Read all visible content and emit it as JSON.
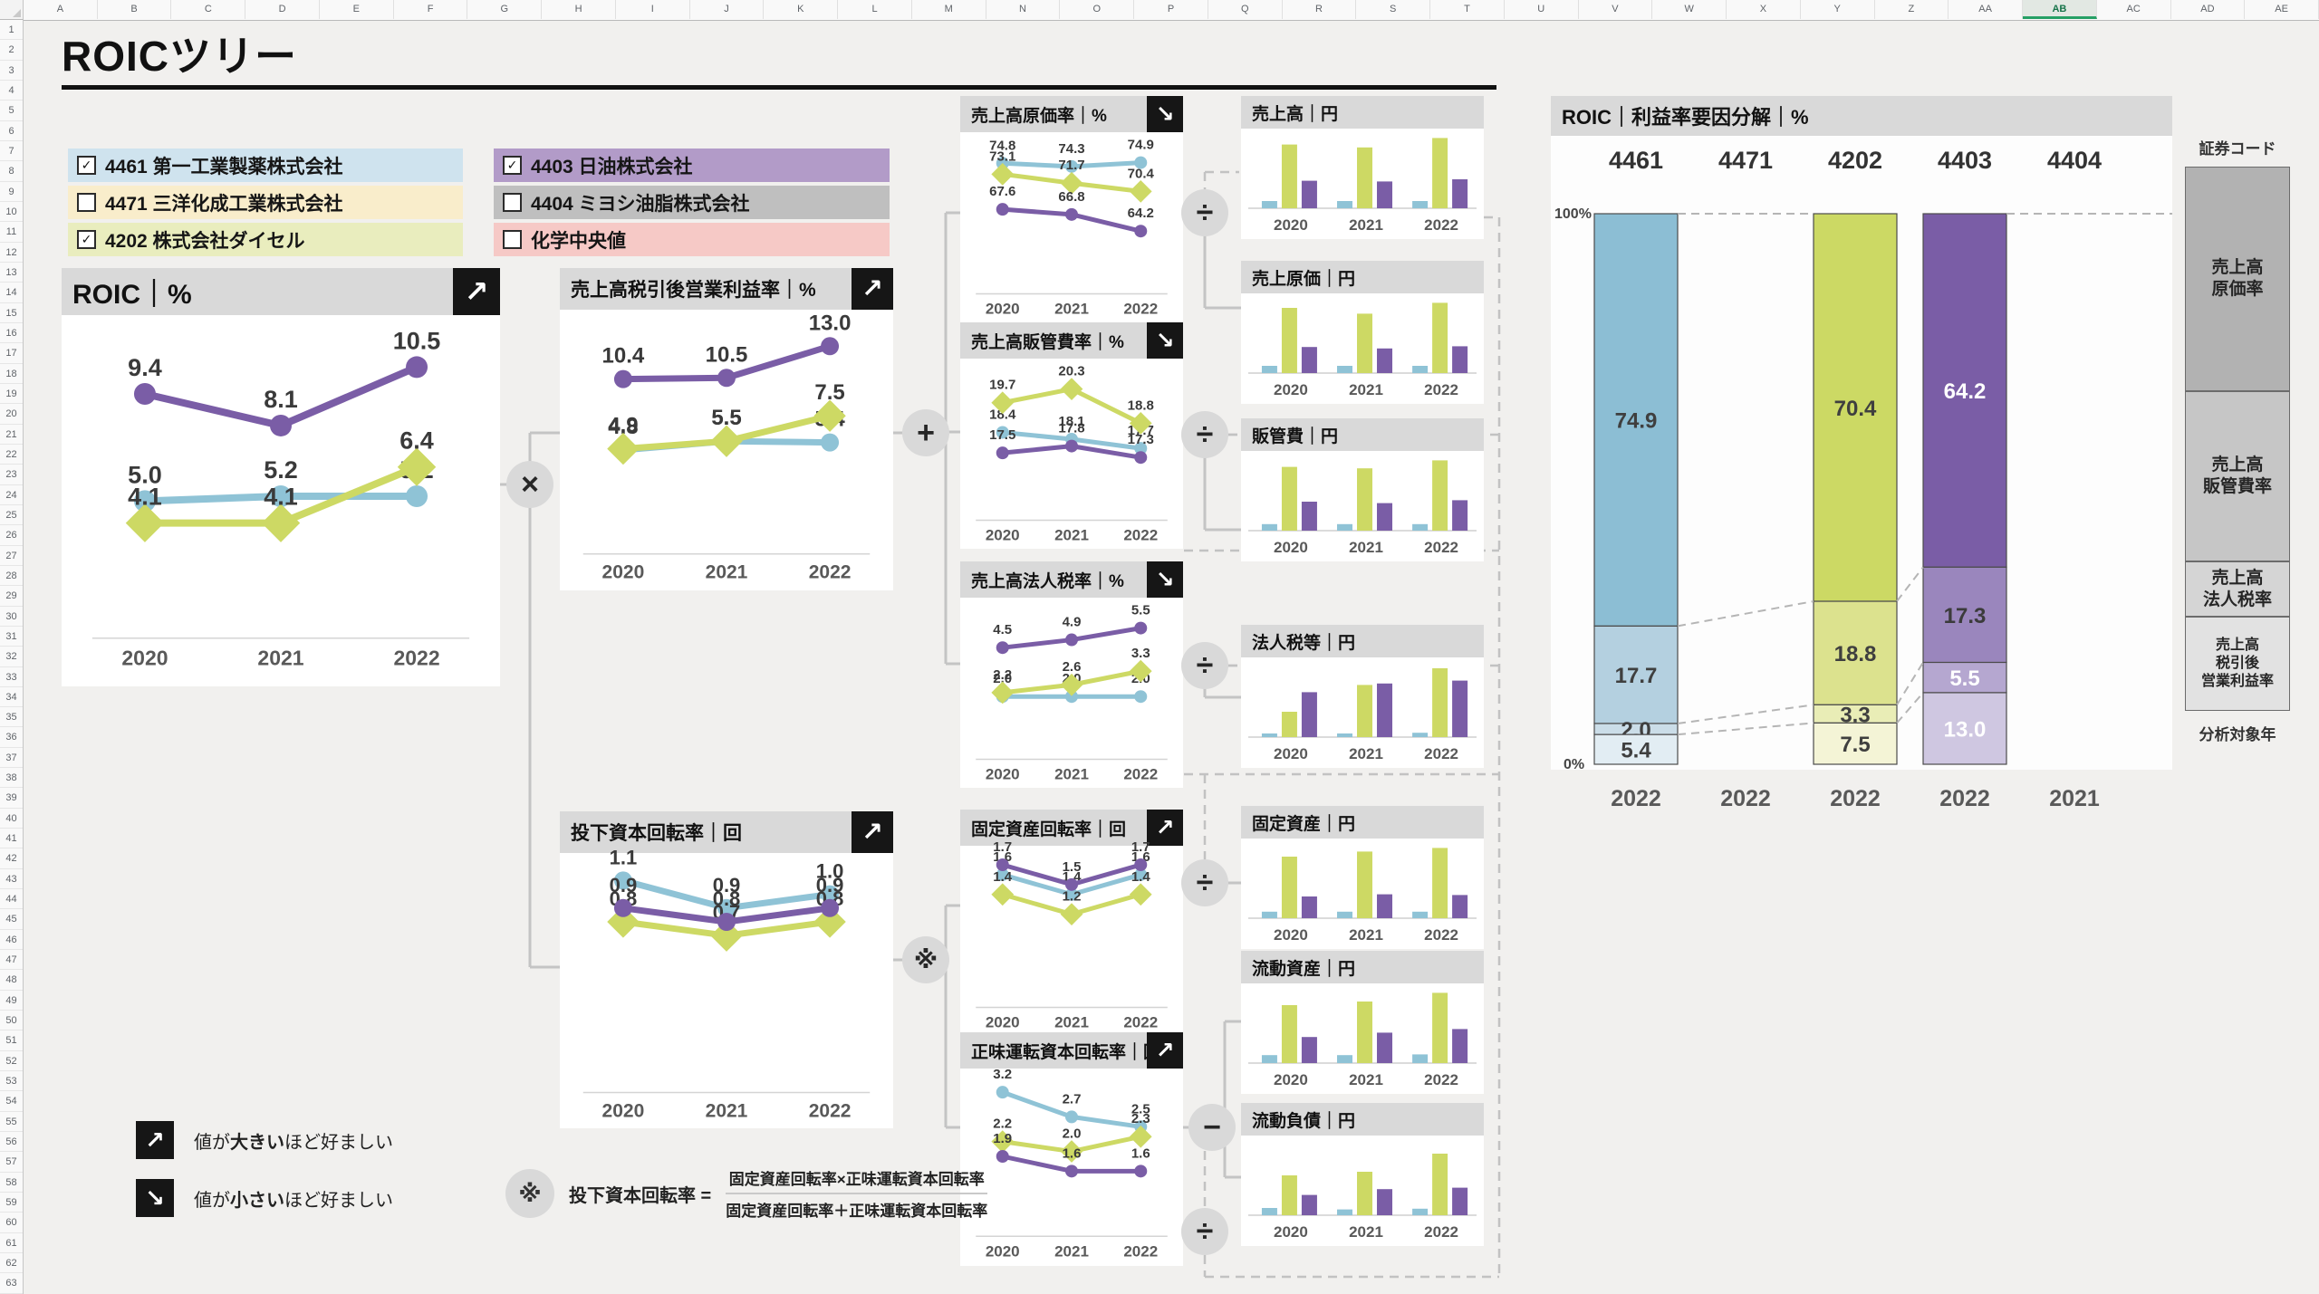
{
  "window": {
    "app": "excel-sheet"
  },
  "excel": {
    "columns": [
      "A",
      "B",
      "C",
      "D",
      "E",
      "F",
      "G",
      "H",
      "I",
      "J",
      "K",
      "L",
      "M",
      "N",
      "O",
      "P",
      "Q",
      "R",
      "S",
      "T",
      "U",
      "V",
      "W",
      "X",
      "Y",
      "Z",
      "AA",
      "AB",
      "AC",
      "AD",
      "AE"
    ],
    "selected_column": "AB",
    "row_count": 63
  },
  "title": "ROICツリー",
  "years": [
    "2020",
    "2021",
    "2022"
  ],
  "series_colors": {
    "4461": "#8fc3d6",
    "4202": "#cdd964",
    "4403": "#7a5da6"
  },
  "legend": {
    "items": [
      {
        "code": "4461",
        "name": "第一工業製薬株式会社",
        "checked": true,
        "color": "#cfe3ee"
      },
      {
        "code": "4471",
        "name": "三洋化成工業株式会社",
        "checked": false,
        "color": "#f9edcb"
      },
      {
        "code": "4202",
        "name": "株式会社ダイセル",
        "checked": true,
        "color": "#e9edbe"
      },
      {
        "code": "4403",
        "name": "日油株式会社",
        "checked": true,
        "color": "#b29bc8"
      },
      {
        "code": "4404",
        "name": "ミヨシ油脂株式会社",
        "checked": false,
        "color": "#bfbfbf"
      },
      {
        "code": "",
        "name": "化学中央値",
        "checked": false,
        "color": "#f6c9c6"
      }
    ]
  },
  "operators": {
    "multiply": "×",
    "plus": "+",
    "divide": "÷",
    "minus": "−",
    "reference": "※"
  },
  "icons": {
    "up_right_arrow": "↗",
    "down_right_arrow": "↘",
    "check": "✓"
  },
  "notes": {
    "up": {
      "pre": "値が",
      "bold": "大きい",
      "post": "ほど好ましい"
    },
    "down": {
      "pre": "値が",
      "bold": "小さい",
      "post": "ほど好ましい"
    }
  },
  "formula_note": {
    "mark": "※",
    "lhs": "投下資本回転率 =",
    "numerator": "固定資産回転率×正味運転資本回転率",
    "denominator": "固定資産回転率＋正味運転資本回転率"
  },
  "chart_data": {
    "line_charts": [
      {
        "id": "roic",
        "type": "line",
        "title": "ROIC",
        "unit": "%",
        "better": "up",
        "x": [
          "2020",
          "2021",
          "2022"
        ],
        "series": [
          {
            "name": "4461",
            "values": [
              5.0,
              5.2,
              5.2
            ]
          },
          {
            "name": "4202",
            "values": [
              4.1,
              4.1,
              6.4
            ]
          },
          {
            "name": "4403",
            "values": [
              9.4,
              8.1,
              10.5
            ]
          }
        ]
      },
      {
        "id": "after-tax-op-margin",
        "type": "line",
        "title": "売上高税引後営業利益率",
        "unit": "%",
        "better": "up",
        "x": [
          "2020",
          "2021",
          "2022"
        ],
        "series": [
          {
            "name": "4461",
            "values": [
              4.8,
              5.5,
              5.4
            ]
          },
          {
            "name": "4202",
            "values": [
              4.9,
              5.5,
              7.5
            ]
          },
          {
            "name": "4403",
            "values": [
              10.4,
              10.5,
              13.0
            ]
          }
        ]
      },
      {
        "id": "invested-capital-turnover",
        "type": "line",
        "title": "投下資本回転率",
        "unit": "回",
        "better": "up",
        "x": [
          "2020",
          "2021",
          "2022"
        ],
        "series": [
          {
            "name": "4461",
            "values": [
              1.1,
              0.9,
              1.0
            ]
          },
          {
            "name": "4202",
            "values": [
              0.8,
              0.7,
              0.8
            ]
          },
          {
            "name": "4403",
            "values": [
              0.9,
              0.8,
              0.9
            ]
          }
        ]
      },
      {
        "id": "cogs-ratio",
        "type": "line",
        "title": "売上高原価率",
        "unit": "%",
        "better": "down",
        "x": [
          "2020",
          "2021",
          "2022"
        ],
        "series": [
          {
            "name": "4461",
            "values": [
              74.8,
              74.3,
              74.9
            ]
          },
          {
            "name": "4202",
            "values": [
              73.1,
              71.7,
              70.4
            ]
          },
          {
            "name": "4403",
            "values": [
              67.6,
              66.8,
              64.2
            ]
          }
        ]
      },
      {
        "id": "sga-ratio",
        "type": "line",
        "title": "売上高販管費率",
        "unit": "%",
        "better": "down",
        "x": [
          "2020",
          "2021",
          "2022"
        ],
        "series": [
          {
            "name": "4461",
            "values": [
              18.4,
              18.1,
              17.7
            ]
          },
          {
            "name": "4202",
            "values": [
              19.7,
              20.3,
              18.8
            ]
          },
          {
            "name": "4403",
            "values": [
              17.5,
              17.8,
              17.3
            ]
          }
        ]
      },
      {
        "id": "tax-ratio",
        "type": "line",
        "title": "売上高法人税率",
        "unit": "%",
        "better": "down",
        "x": [
          "2020",
          "2021",
          "2022"
        ],
        "series": [
          {
            "name": "4461",
            "values": [
              2.0,
              2.0,
              2.0
            ]
          },
          {
            "name": "4202",
            "values": [
              2.2,
              2.6,
              3.3
            ]
          },
          {
            "name": "4403",
            "values": [
              4.5,
              4.9,
              5.5
            ]
          }
        ]
      },
      {
        "id": "fixed-asset-turnover",
        "type": "line",
        "title": "固定資産回転率",
        "unit": "回",
        "better": "up",
        "x": [
          "2020",
          "2021",
          "2022"
        ],
        "series": [
          {
            "name": "4461",
            "values": [
              1.6,
              1.4,
              1.6
            ]
          },
          {
            "name": "4202",
            "values": [
              1.4,
              1.2,
              1.4
            ]
          },
          {
            "name": "4403",
            "values": [
              1.7,
              1.5,
              1.7
            ]
          }
        ]
      },
      {
        "id": "net-working-capital-turnover",
        "type": "line",
        "title": "正味運転資本回転率",
        "unit": "回",
        "better": "up",
        "x": [
          "2020",
          "2021",
          "2022"
        ],
        "series": [
          {
            "name": "4461",
            "values": [
              3.2,
              2.7,
              2.5
            ]
          },
          {
            "name": "4202",
            "values": [
              2.2,
              2.0,
              2.3
            ]
          },
          {
            "name": "4403",
            "values": [
              1.9,
              1.6,
              1.6
            ]
          }
        ]
      }
    ],
    "bar_charts": [
      {
        "id": "sales",
        "type": "bar",
        "title": "売上高",
        "unit": "円",
        "x": [
          "2020",
          "2021",
          "2022"
        ],
        "note": "relative heights, no value labels shown",
        "series": [
          {
            "name": "4461",
            "values": [
              0.1,
              0.1,
              0.1
            ]
          },
          {
            "name": "4202",
            "values": [
              0.88,
              0.84,
              0.97
            ]
          },
          {
            "name": "4403",
            "values": [
              0.38,
              0.37,
              0.4
            ]
          }
        ]
      },
      {
        "id": "cogs",
        "type": "bar",
        "title": "売上原価",
        "unit": "円",
        "x": [
          "2020",
          "2021",
          "2022"
        ],
        "series": [
          {
            "name": "4461",
            "values": [
              0.1,
              0.1,
              0.1
            ]
          },
          {
            "name": "4202",
            "values": [
              0.9,
              0.82,
              0.97
            ]
          },
          {
            "name": "4403",
            "values": [
              0.36,
              0.34,
              0.37
            ]
          }
        ]
      },
      {
        "id": "sga",
        "type": "bar",
        "title": "販管費",
        "unit": "円",
        "x": [
          "2020",
          "2021",
          "2022"
        ],
        "series": [
          {
            "name": "4461",
            "values": [
              0.09,
              0.09,
              0.09
            ]
          },
          {
            "name": "4202",
            "values": [
              0.88,
              0.86,
              0.97
            ]
          },
          {
            "name": "4403",
            "values": [
              0.4,
              0.38,
              0.42
            ]
          }
        ]
      },
      {
        "id": "income-tax",
        "type": "bar",
        "title": "法人税等",
        "unit": "円",
        "x": [
          "2020",
          "2021",
          "2022"
        ],
        "series": [
          {
            "name": "4461",
            "values": [
              0.05,
              0.05,
              0.06
            ]
          },
          {
            "name": "4202",
            "values": [
              0.35,
              0.72,
              0.95
            ]
          },
          {
            "name": "4403",
            "values": [
              0.62,
              0.74,
              0.78
            ]
          }
        ]
      },
      {
        "id": "fixed-assets",
        "type": "bar",
        "title": "固定資産",
        "unit": "円",
        "x": [
          "2020",
          "2021",
          "2022"
        ],
        "series": [
          {
            "name": "4461",
            "values": [
              0.09,
              0.09,
              0.09
            ]
          },
          {
            "name": "4202",
            "values": [
              0.85,
              0.92,
              0.97
            ]
          },
          {
            "name": "4403",
            "values": [
              0.3,
              0.33,
              0.32
            ]
          }
        ]
      },
      {
        "id": "current-assets",
        "type": "bar",
        "title": "流動資産",
        "unit": "円",
        "x": [
          "2020",
          "2021",
          "2022"
        ],
        "series": [
          {
            "name": "4461",
            "values": [
              0.11,
              0.11,
              0.12
            ]
          },
          {
            "name": "4202",
            "values": [
              0.8,
              0.85,
              0.97
            ]
          },
          {
            "name": "4403",
            "values": [
              0.36,
              0.42,
              0.47
            ]
          }
        ]
      },
      {
        "id": "current-liabilities",
        "type": "bar",
        "title": "流動負債",
        "unit": "円",
        "x": [
          "2020",
          "2021",
          "2022"
        ],
        "series": [
          {
            "name": "4461",
            "values": [
              0.1,
              0.08,
              0.09
            ]
          },
          {
            "name": "4202",
            "values": [
              0.55,
              0.6,
              0.85
            ]
          },
          {
            "name": "4403",
            "values": [
              0.28,
              0.36,
              0.38
            ]
          }
        ]
      }
    ],
    "stacked_chart": {
      "id": "roic-margin-decomposition",
      "type": "bar",
      "title": "ROIC｜利益率要因分解｜%",
      "axis_top": "100%",
      "axis_bottom": "0%",
      "segment_order": [
        "売上高原価率",
        "売上高販管費率",
        "売上高法人税率",
        "売上高税引後営業利益率"
      ],
      "columns": [
        {
          "code": "4461",
          "year": "2022",
          "values": [
            74.9,
            17.7,
            2.0,
            5.4
          ],
          "colors": [
            "#8cbed4",
            "#b4d0e0",
            "#cbdde8",
            "#e2edf3"
          ],
          "label_colors": [
            "#3f3f3f",
            "#3f3f3f",
            "#3f3f3f",
            "#3f3f3f"
          ]
        },
        {
          "code": "4471",
          "year": "2022",
          "values": [],
          "colors": [],
          "label_colors": []
        },
        {
          "code": "4202",
          "year": "2022",
          "values": [
            70.4,
            18.8,
            3.3,
            7.5
          ],
          "colors": [
            "#ccd964",
            "#dce28e",
            "#e9edb6",
            "#f4f4d6"
          ],
          "label_colors": [
            "#3f3f3f",
            "#3f3f3f",
            "#3f3f3f",
            "#3f3f3f"
          ]
        },
        {
          "code": "4403",
          "year": "2022",
          "values": [
            64.2,
            17.3,
            5.5,
            13.0
          ],
          "colors": [
            "#7a5da6",
            "#9a86bd",
            "#b5a7d0",
            "#cfc7e1"
          ],
          "label_colors": [
            "#ffffff",
            "#3b3b3b",
            "#ffffff",
            "#ffffff"
          ]
        },
        {
          "code": "4404",
          "year": "2021",
          "values": [],
          "colors": [],
          "label_colors": []
        }
      ],
      "right_axis": {
        "title": "証券コード",
        "blocks": [
          {
            "lines": [
              "売上高",
              "原価率"
            ],
            "color": "#b2b2b2"
          },
          {
            "lines": [
              "売上高",
              "販管費率"
            ],
            "color": "#c6c6c6"
          },
          {
            "lines": [
              "売上高",
              "法人税率"
            ],
            "color": "#d5d5d5"
          },
          {
            "lines": [
              "売上高",
              "税引後",
              "営業利益率"
            ],
            "color": "#e2e2e2"
          }
        ],
        "footer": "分析対象年"
      }
    }
  }
}
